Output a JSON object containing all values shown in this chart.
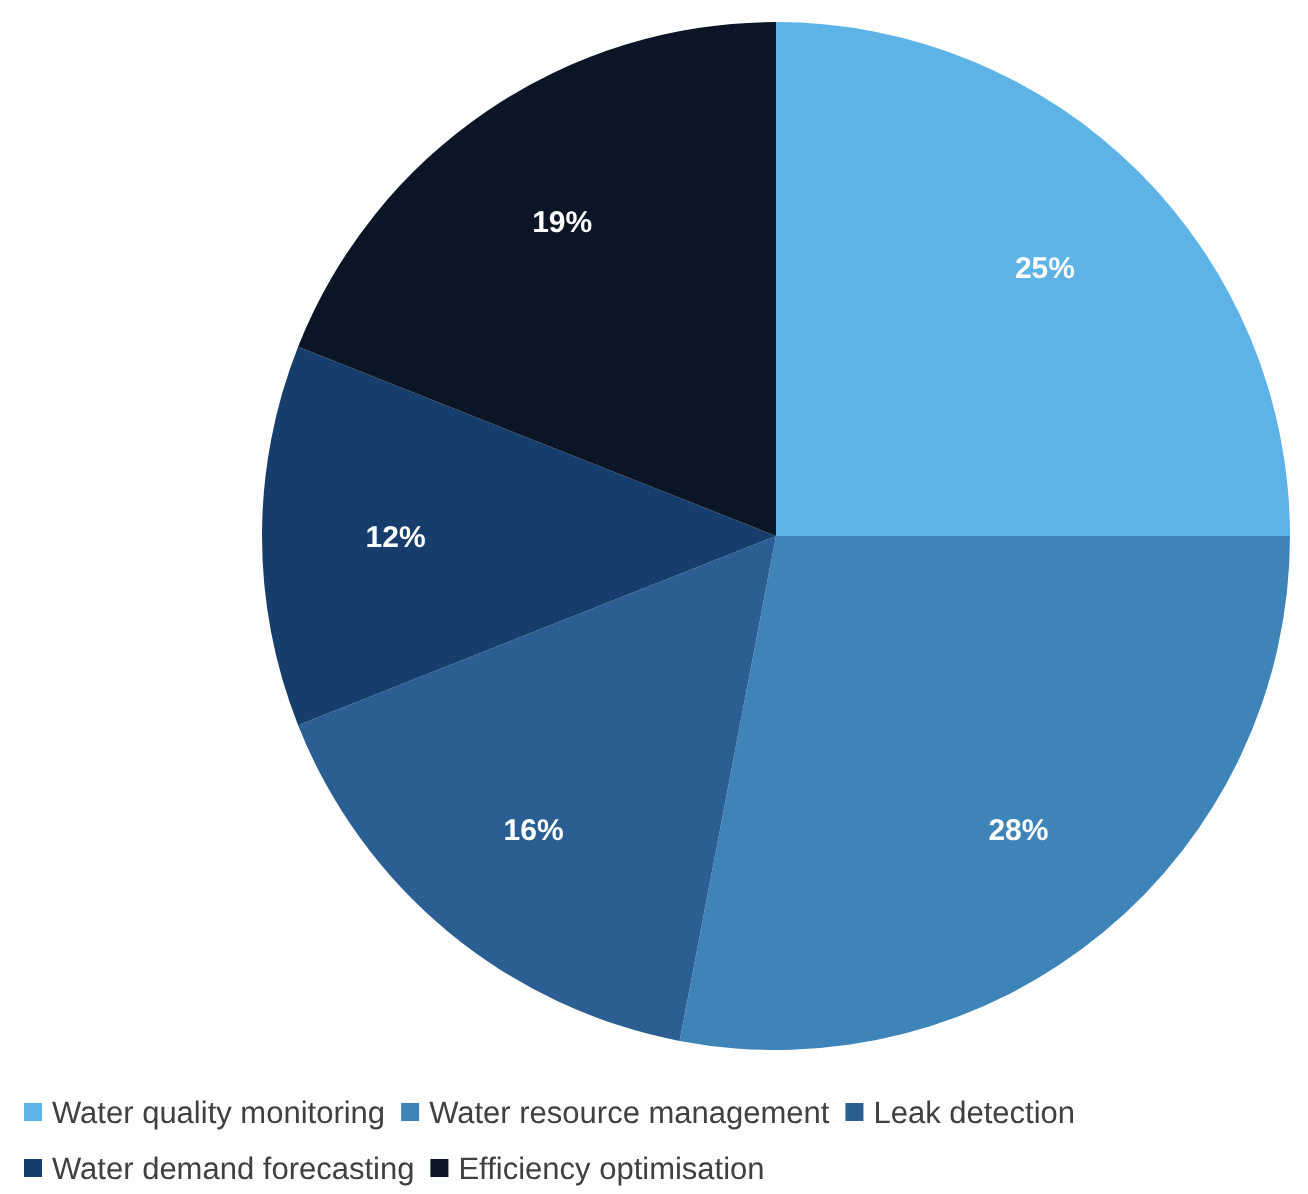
{
  "chart_data": {
    "type": "pie",
    "categories": [
      "Water quality monitoring",
      "Water resource management",
      "Leak detection",
      "Water demand forecasting",
      "Efficiency optimisation"
    ],
    "values": [
      25,
      28,
      16,
      12,
      19
    ],
    "colors": [
      "#5eb3e6",
      "#3f84b8",
      "#2b5f94",
      "#163d6b",
      "#0a1526"
    ],
    "value_labels": [
      "25%",
      "28%",
      "16%",
      "12%",
      "19%"
    ],
    "legend": "bottom"
  }
}
